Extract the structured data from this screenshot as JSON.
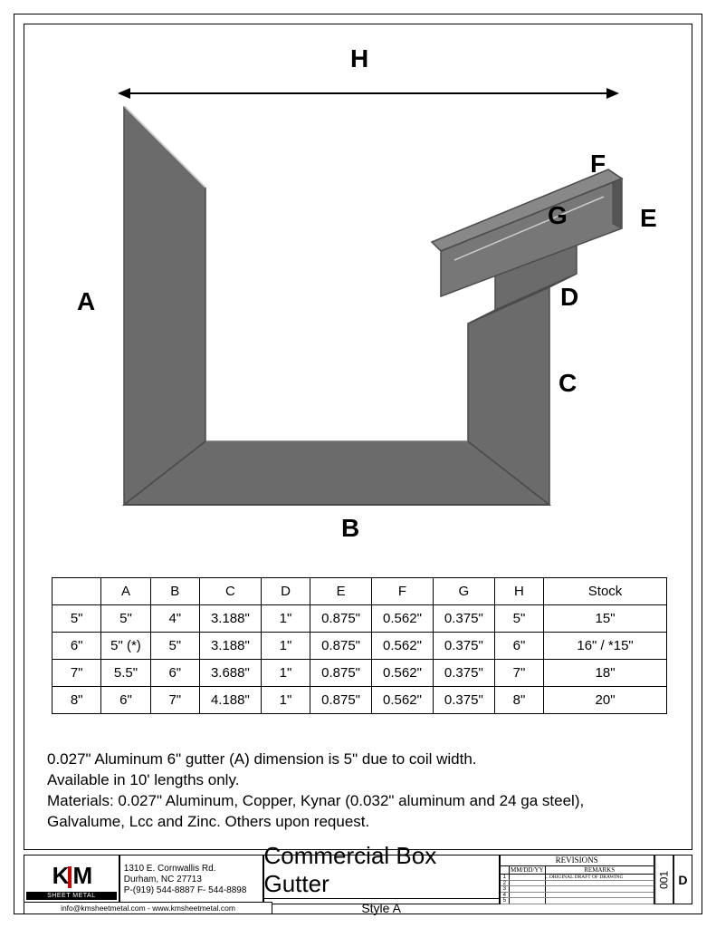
{
  "diagram": {
    "labels": {
      "A": "A",
      "B": "B",
      "C": "C",
      "D": "D",
      "E": "E",
      "F": "F",
      "G": "G",
      "H": "H"
    },
    "fill_color": "#6b6b6b",
    "stroke_color": "#4a4a4a",
    "highlight_stroke": "#cccccc"
  },
  "table": {
    "headers": [
      "",
      "A",
      "B",
      "C",
      "D",
      "E",
      "F",
      "G",
      "H",
      "Stock"
    ],
    "rows": [
      [
        "5\"",
        "5\"",
        "4\"",
        "3.188\"",
        "1\"",
        "0.875\"",
        "0.562\"",
        "0.375\"",
        "5\"",
        "15\""
      ],
      [
        "6\"",
        "5\" (*)",
        "5\"",
        "3.188\"",
        "1\"",
        "0.875\"",
        "0.562\"",
        "0.375\"",
        "6\"",
        "16\" / *15\""
      ],
      [
        "7\"",
        "5.5\"",
        "6\"",
        "3.688\"",
        "1\"",
        "0.875\"",
        "0.562\"",
        "0.375\"",
        "7\"",
        "18\""
      ],
      [
        "8\"",
        "6\"",
        "7\"",
        "4.188\"",
        "1\"",
        "0.875\"",
        "0.562\"",
        "0.375\"",
        "8\"",
        "20\""
      ]
    ],
    "col_widths_pct": [
      8,
      8,
      8,
      10,
      8,
      10,
      10,
      10,
      8,
      20
    ]
  },
  "notes": {
    "lines": [
      "0.027\" Aluminum 6\" gutter (A) dimension is 5\" due to coil width.",
      "Available in 10' lengths only.",
      "Materials: 0.027\" Aluminum, Copper, Kynar (0.032\" aluminum and 24 ga steel),",
      "Galvalume, Lcc and Zinc. Others upon request."
    ]
  },
  "titleblock": {
    "logo_text": "K M",
    "logo_sub": "SHEET METAL",
    "address": [
      "1310 E. Cornwallis Rd.",
      "Durham, NC 27713",
      "P-(919) 544-8887 F- 544-8898"
    ],
    "contact": "info@kmsheetmetal.com - www.kmsheetmetal.com",
    "title": "Commercial Box Gutter",
    "subtitle": "Style A",
    "revisions_header": "REVISIONS",
    "rev_col_headers": [
      "",
      "MM/DD/YY",
      "REMARKS"
    ],
    "rev_rows": [
      [
        "1",
        "",
        "...ORIGINAL DRAFT OF DRAWING"
      ],
      [
        "2",
        "",
        ""
      ],
      [
        "3",
        "",
        ""
      ],
      [
        "4",
        "",
        ""
      ],
      [
        "5",
        "",
        ""
      ]
    ],
    "code_letter": "D",
    "code_number": "001"
  }
}
